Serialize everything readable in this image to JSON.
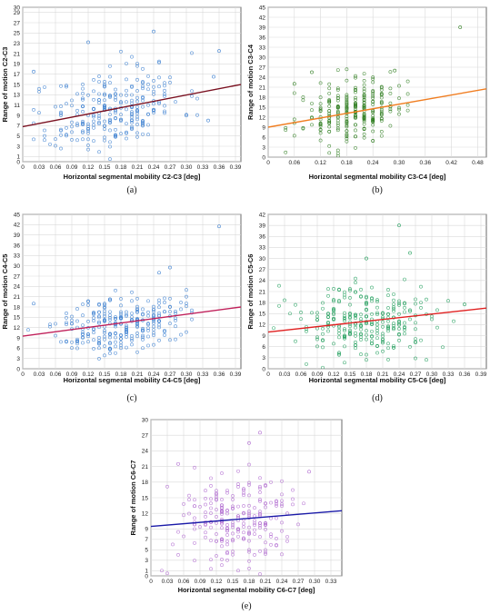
{
  "chart_data": [
    {
      "type": "scatter",
      "panel_label": "(a)",
      "xlabel": "Horizontal segmental mobility C2-C3 [deg]",
      "ylabel": "Range of motion C2-C3",
      "xlim": [
        0,
        0.4
      ],
      "ylim": [
        0,
        30
      ],
      "x_ticks": [
        "0",
        "0.03",
        "0.06",
        "0.09",
        "0.12",
        "0.15",
        "0.18",
        "0.21",
        "0.24",
        "0.27",
        "0.30",
        "0.33",
        "0.36",
        "0.39"
      ],
      "y_ticks": [
        "0",
        "1",
        "3",
        "5",
        "7",
        "9",
        "11",
        "13",
        "15",
        "17",
        "19",
        "21",
        "23",
        "25",
        "27",
        "29",
        "30"
      ],
      "y_tick_values": [
        0,
        1,
        3,
        5,
        7,
        9,
        11,
        13,
        15,
        17,
        19,
        21,
        23,
        25,
        27,
        29,
        30
      ],
      "x_tick_values": [
        0,
        0.03,
        0.06,
        0.09,
        0.12,
        0.15,
        0.18,
        0.21,
        0.24,
        0.27,
        0.3,
        0.33,
        0.36,
        0.39
      ],
      "grid": true,
      "point_color": "#3b7fd0",
      "trend_color": "#7a1020",
      "trend": {
        "x": [
          0,
          0.4
        ],
        "y": [
          6.8,
          15.0
        ]
      },
      "cloud": {
        "cx": 0.17,
        "sx": 0.06,
        "cy": 10.5,
        "sy": 4.0,
        "n": 260,
        "seed": 11
      },
      "outliers": [
        [
          0.36,
          21.5
        ],
        [
          0.35,
          16.5
        ],
        [
          0.34,
          8.0
        ],
        [
          0.02,
          17.5
        ],
        [
          0.24,
          25.3
        ],
        [
          0.12,
          23.2
        ]
      ]
    },
    {
      "type": "scatter",
      "panel_label": "(b)",
      "xlabel": "Horizontal segmental mobility C3-C4 [deg]",
      "ylabel": "Range of motion C3-C4",
      "xlim": [
        0,
        0.5
      ],
      "ylim": [
        0,
        45
      ],
      "x_ticks": [
        "0",
        "0.06",
        "0.12",
        "0.18",
        "0.24",
        "0.30",
        "0.36",
        "0.42",
        "0.48"
      ],
      "x_tick_values": [
        0,
        0.06,
        0.12,
        0.18,
        0.24,
        0.3,
        0.36,
        0.42,
        0.48
      ],
      "y_ticks": [
        "0",
        "3",
        "6",
        "9",
        "12",
        "15",
        "18",
        "21",
        "24",
        "27",
        "30",
        "33",
        "36",
        "39",
        "42",
        "45"
      ],
      "y_tick_values": [
        0,
        3,
        6,
        9,
        12,
        15,
        18,
        21,
        24,
        27,
        30,
        33,
        36,
        39,
        42,
        45
      ],
      "grid": true,
      "point_color": "#2e7d1f",
      "trend_color": "#f07d20",
      "trend": {
        "x": [
          0,
          0.5
        ],
        "y": [
          9.0,
          20.5
        ]
      },
      "cloud": {
        "cx": 0.19,
        "sx": 0.055,
        "cy": 13.0,
        "sy": 4.3,
        "n": 260,
        "seed": 23
      },
      "outliers": [
        [
          0.44,
          39.0
        ],
        [
          0.29,
          26.0
        ],
        [
          0.1,
          25.5
        ],
        [
          0.06,
          22.0
        ]
      ]
    },
    {
      "type": "scatter",
      "panel_label": "(c)",
      "xlabel": "Horizontal segmental mobility C4-C5 [deg]",
      "ylabel": "Range of motion C4-C5",
      "xlim": [
        0,
        0.4
      ],
      "ylim": [
        0,
        45
      ],
      "x_ticks": [
        "0",
        "0.03",
        "0.06",
        "0.09",
        "0.12",
        "0.15",
        "0.18",
        "0.21",
        "0.24",
        "0.27",
        "0.30",
        "0.33",
        "0.36",
        "0.39"
      ],
      "x_tick_values": [
        0,
        0.03,
        0.06,
        0.09,
        0.12,
        0.15,
        0.18,
        0.21,
        0.24,
        0.27,
        0.3,
        0.33,
        0.36,
        0.39
      ],
      "y_ticks": [
        "0",
        "3",
        "6",
        "9",
        "12",
        "15",
        "18",
        "21",
        "24",
        "27",
        "30",
        "33",
        "36",
        "39",
        "42",
        "45"
      ],
      "y_tick_values": [
        0,
        3,
        6,
        9,
        12,
        15,
        18,
        21,
        24,
        27,
        30,
        33,
        36,
        39,
        42,
        45
      ],
      "grid": true,
      "point_color": "#3b7fd0",
      "trend_color": "#c0205a",
      "trend": {
        "x": [
          0,
          0.4
        ],
        "y": [
          9.5,
          18.0
        ]
      },
      "cloud": {
        "cx": 0.18,
        "sx": 0.055,
        "cy": 13.5,
        "sy": 4.0,
        "n": 270,
        "seed": 37
      },
      "outliers": [
        [
          0.36,
          41.5
        ],
        [
          0.02,
          19.0
        ],
        [
          0.27,
          29.5
        ],
        [
          0.25,
          28.0
        ]
      ]
    },
    {
      "type": "scatter",
      "panel_label": "(d)",
      "xlabel": "Horizontal segmental mobility C5-C6 [deg]",
      "ylabel": "Range of motion C5-C6",
      "xlim": [
        0,
        0.4
      ],
      "ylim": [
        0,
        42
      ],
      "x_ticks": [
        "0",
        "0.03",
        "0.06",
        "0.09",
        "0.12",
        "0.15",
        "0.18",
        "0.21",
        "0.24",
        "0.27",
        "0.30",
        "0.33",
        "0.36",
        "0.39"
      ],
      "x_tick_values": [
        0,
        0.03,
        0.06,
        0.09,
        0.12,
        0.15,
        0.18,
        0.21,
        0.24,
        0.27,
        0.3,
        0.33,
        0.36,
        0.39
      ],
      "y_ticks": [
        "0",
        "3",
        "6",
        "9",
        "12",
        "15",
        "18",
        "21",
        "24",
        "27",
        "30",
        "33",
        "36",
        "39",
        "42"
      ],
      "y_tick_values": [
        0,
        3,
        6,
        9,
        12,
        15,
        18,
        21,
        24,
        27,
        30,
        33,
        36,
        39,
        42
      ],
      "grid": true,
      "point_color": "#1f9e5a",
      "trend_color": "#e02020",
      "trend": {
        "x": [
          0,
          0.4
        ],
        "y": [
          10.0,
          16.5
        ]
      },
      "cloud": {
        "cx": 0.18,
        "sx": 0.065,
        "cy": 13.0,
        "sy": 5.0,
        "n": 270,
        "seed": 53
      },
      "outliers": [
        [
          0.24,
          39.0
        ],
        [
          0.18,
          30.0
        ],
        [
          0.26,
          31.5
        ],
        [
          0.36,
          17.5
        ]
      ]
    },
    {
      "type": "scatter",
      "panel_label": "(e)",
      "xlabel": "Horizontal segmental mobility C6-C7 [deg]",
      "ylabel": "Range of motion C6-C7",
      "xlim": [
        0,
        0.35
      ],
      "ylim": [
        0,
        30
      ],
      "x_ticks": [
        "0",
        "0.03",
        "0.06",
        "0.09",
        "0.12",
        "0.15",
        "0.18",
        "0.21",
        "0.24",
        "0.27",
        "0.30",
        "0.33"
      ],
      "x_tick_values": [
        0,
        0.03,
        0.06,
        0.09,
        0.12,
        0.15,
        0.18,
        0.21,
        0.24,
        0.27,
        0.3,
        0.33
      ],
      "y_ticks": [
        "0",
        "1",
        "3",
        "5",
        "7",
        "9",
        "12",
        "15",
        "18",
        "21",
        "24",
        "27",
        "30"
      ],
      "y_tick_values": [
        0,
        1,
        3,
        5,
        7,
        9,
        12,
        15,
        18,
        21,
        24,
        27,
        30
      ],
      "grid": true,
      "point_color": "#b06ad0",
      "trend_color": "#1a1aa8",
      "trend": {
        "x": [
          0,
          0.35
        ],
        "y": [
          9.5,
          12.5
        ]
      },
      "cloud": {
        "cx": 0.16,
        "sx": 0.06,
        "cy": 10.5,
        "sy": 4.5,
        "n": 230,
        "seed": 71
      },
      "outliers": [
        [
          0.2,
          27.5
        ],
        [
          0.18,
          25.5
        ],
        [
          0.05,
          21.5
        ],
        [
          0.29,
          20.0
        ]
      ]
    }
  ]
}
